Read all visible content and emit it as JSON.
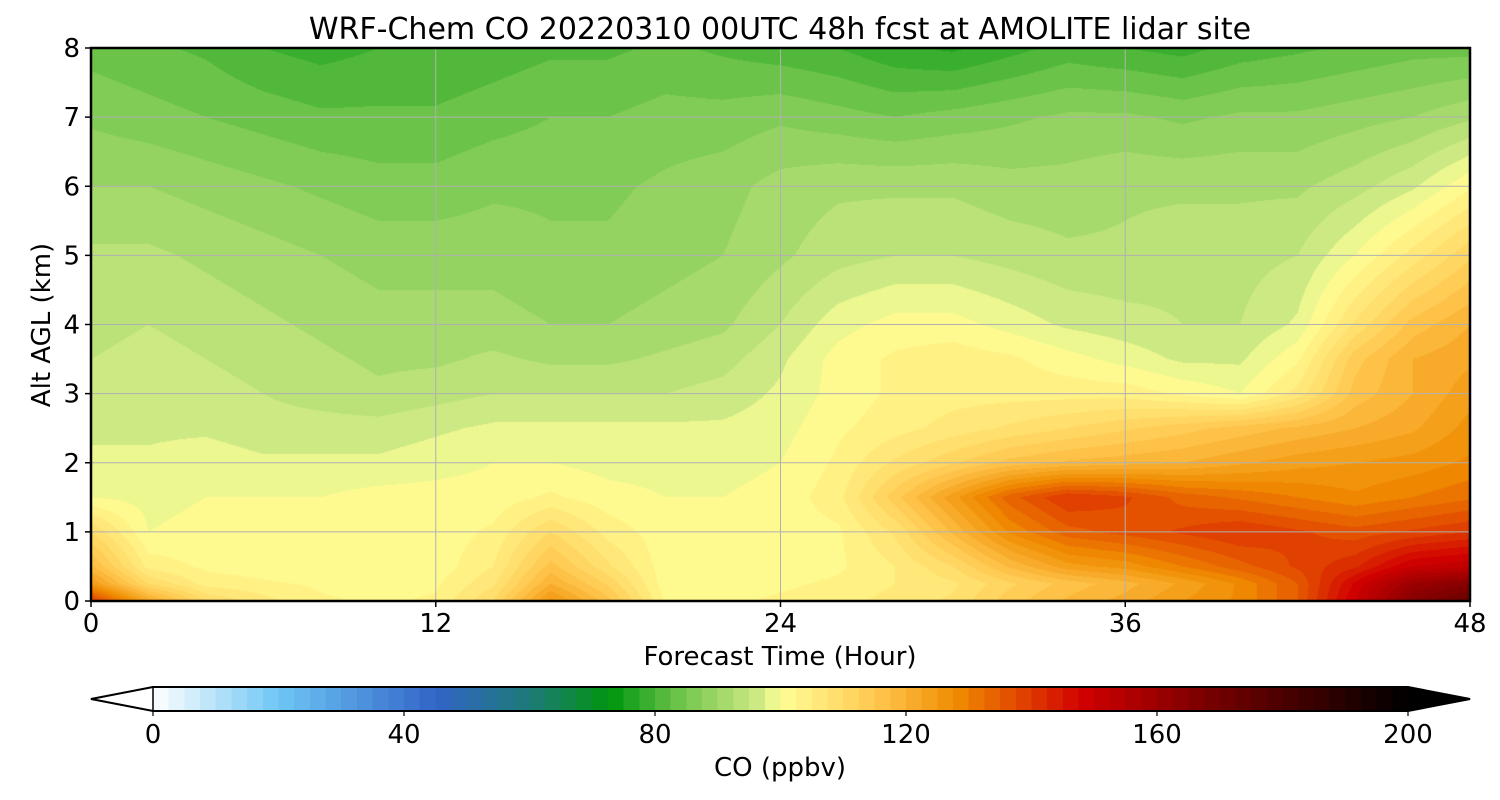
{
  "chart_data": {
    "type": "heatmap",
    "title": "WRF-Chem CO  20220310 00UTC 48h fcst at AMOLITE lidar site",
    "xlabel": "Forecast Time (Hour)",
    "ylabel": "Alt AGL (km)",
    "xlim": [
      0,
      48
    ],
    "ylim": [
      0,
      8
    ],
    "xticks": [
      0,
      12,
      24,
      36,
      48
    ],
    "yticks": [
      0,
      1,
      2,
      3,
      4,
      5,
      6,
      7,
      8
    ],
    "grid": true,
    "colorbar": {
      "label": "CO  (ppbv)",
      "min": 0,
      "max": 200,
      "ticks": [
        0,
        40,
        80,
        120,
        160,
        200
      ],
      "extend": "both",
      "color_stops": [
        {
          "v": 0,
          "c": "#ffffff"
        },
        {
          "v": 20,
          "c": "#6ec6f4"
        },
        {
          "v": 45,
          "c": "#3264c8"
        },
        {
          "v": 60,
          "c": "#1e7a78"
        },
        {
          "v": 73,
          "c": "#00960f"
        },
        {
          "v": 85,
          "c": "#78c850"
        },
        {
          "v": 97,
          "c": "#d2eb87"
        },
        {
          "v": 100,
          "c": "#ffff96"
        },
        {
          "v": 115,
          "c": "#ffc850"
        },
        {
          "v": 128,
          "c": "#f08c00"
        },
        {
          "v": 148,
          "c": "#d20000"
        },
        {
          "v": 168,
          "c": "#780000"
        },
        {
          "v": 200,
          "c": "#000000"
        }
      ]
    },
    "x": [
      0,
      2,
      4,
      6,
      8,
      10,
      12,
      14,
      16,
      18,
      20,
      22,
      24,
      26,
      28,
      30,
      32,
      34,
      36,
      38,
      40,
      42,
      44,
      46,
      48
    ],
    "y": [
      0,
      0.25,
      0.5,
      1,
      1.5,
      2,
      2.5,
      3,
      3.5,
      4,
      5,
      6,
      7,
      8
    ],
    "z": [
      [
        140,
        122,
        110,
        106,
        103,
        102,
        103,
        110,
        126,
        116,
        102,
        102,
        103,
        104,
        106,
        108,
        114,
        118,
        121,
        125,
        128,
        135,
        150,
        165,
        172
      ],
      [
        125,
        110,
        104,
        103,
        102,
        101,
        102,
        107,
        120,
        112,
        101,
        101,
        102,
        103,
        105,
        107,
        112,
        116,
        119,
        123,
        128,
        135,
        148,
        160,
        165
      ],
      [
        118,
        104,
        102,
        101,
        101,
        100,
        101,
        105,
        116,
        108,
        101,
        101,
        101,
        102,
        105,
        110,
        118,
        124,
        126,
        130,
        134,
        138,
        142,
        150,
        152
      ],
      [
        110,
        100,
        101,
        101,
        101,
        101,
        101,
        103,
        110,
        104,
        101,
        101,
        101,
        102,
        108,
        118,
        128,
        134,
        136,
        138,
        140,
        138,
        136,
        138,
        140
      ],
      [
        100,
        99,
        100,
        100,
        100,
        101,
        101,
        101,
        103,
        101,
        100,
        100,
        101,
        104,
        114,
        124,
        134,
        140,
        138,
        134,
        132,
        130,
        128,
        130,
        132
      ],
      [
        98,
        98,
        99,
        98,
        98,
        98,
        99,
        100,
        100,
        99,
        99,
        99,
        100,
        103,
        108,
        112,
        116,
        118,
        119,
        120,
        122,
        124,
        125,
        126,
        128
      ],
      [
        97,
        97,
        97,
        96,
        96,
        96,
        97,
        98,
        98,
        98,
        98,
        98,
        99,
        102,
        104,
        106,
        108,
        110,
        112,
        114,
        116,
        118,
        120,
        122,
        126
      ],
      [
        96,
        97,
        96,
        95,
        94,
        93,
        94,
        95,
        95,
        95,
        95,
        96,
        98,
        101,
        103,
        104,
        104,
        104,
        104,
        102,
        100,
        106,
        116,
        120,
        124
      ],
      [
        95,
        96,
        95,
        94,
        93,
        92,
        92,
        93,
        92,
        92,
        93,
        94,
        97,
        101,
        103,
        104,
        103,
        101,
        99,
        97,
        97,
        102,
        114,
        120,
        122
      ],
      [
        94,
        95,
        94,
        93,
        92,
        91,
        91,
        91,
        90,
        90,
        91,
        92,
        95,
        99,
        101,
        101,
        99,
        97,
        96,
        95,
        95,
        98,
        108,
        116,
        120
      ],
      [
        93,
        93,
        92,
        91,
        90,
        89,
        89,
        89,
        88,
        88,
        89,
        90,
        92,
        94,
        95,
        95,
        94,
        93,
        93,
        94,
        94,
        95,
        100,
        106,
        112
      ],
      [
        90,
        90,
        89,
        88,
        87,
        86,
        86,
        87,
        87,
        87,
        88,
        89,
        91,
        92,
        92,
        92,
        91,
        91,
        92,
        92,
        92,
        92,
        94,
        97,
        102
      ],
      [
        87,
        86,
        85,
        84,
        83,
        83,
        83,
        84,
        85,
        85,
        86,
        86,
        87,
        86,
        85,
        86,
        87,
        88,
        88,
        87,
        88,
        88,
        89,
        90,
        92
      ],
      [
        84,
        83,
        82,
        80,
        79,
        80,
        80,
        81,
        82,
        82,
        83,
        82,
        81,
        80,
        78,
        77,
        79,
        81,
        80,
        79,
        81,
        82,
        83,
        84,
        84
      ]
    ]
  }
}
